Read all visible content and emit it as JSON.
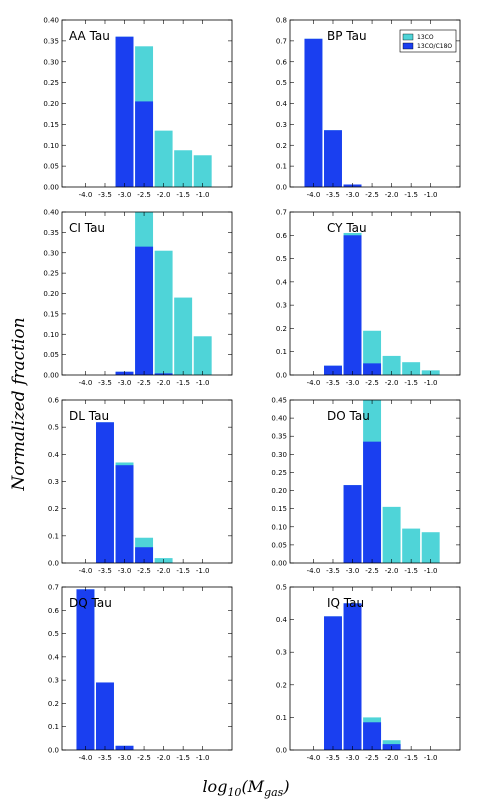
{
  "figure": {
    "ylabel": "Normalized fraction",
    "xlabel": "log10(Mgas)",
    "colors": {
      "cyan": "#4fd4d8",
      "blue": "#1a3ff0"
    },
    "legend": [
      "13CO",
      "13CO/C18O"
    ]
  },
  "chart_data": [
    {
      "type": "bar",
      "name": "AA Tau",
      "categories": [
        "-4.0",
        "-3.5",
        "-3.0",
        "-2.5",
        "-2.0",
        "-1.5",
        "-1.0"
      ],
      "series": [
        {
          "name": "13CO",
          "values": [
            0,
            0,
            0.36,
            0.337,
            0.135,
            0.088,
            0.076
          ]
        },
        {
          "name": "13CO/C18O",
          "values": [
            0,
            0,
            0.36,
            0.205,
            0,
            0,
            0
          ]
        }
      ],
      "ylim": [
        0,
        0.4
      ],
      "yticks": [
        "0.00",
        "0.05",
        "0.10",
        "0.15",
        "0.20",
        "0.25",
        "0.30",
        "0.35",
        "0.40"
      ],
      "ytick_values": [
        0,
        0.05,
        0.1,
        0.15,
        0.2,
        0.25,
        0.3,
        0.35,
        0.4
      ]
    },
    {
      "type": "bar",
      "name": "BP Tau",
      "categories": [
        "-4.0",
        "-3.5",
        "-3.0",
        "-2.5",
        "-2.0",
        "-1.5",
        "-1.0"
      ],
      "series": [
        {
          "name": "13CO",
          "values": [
            0.71,
            0.272,
            0.012,
            0,
            0,
            0,
            0
          ]
        },
        {
          "name": "13CO/C18O",
          "values": [
            0.71,
            0.272,
            0.012,
            0,
            0,
            0,
            0
          ]
        }
      ],
      "ylim": [
        0,
        0.8
      ],
      "yticks": [
        "0.0",
        "0.1",
        "0.2",
        "0.3",
        "0.4",
        "0.5",
        "0.6",
        "0.7",
        "0.8"
      ],
      "ytick_values": [
        0,
        0.1,
        0.2,
        0.3,
        0.4,
        0.5,
        0.6,
        0.7,
        0.8
      ],
      "legend": true
    },
    {
      "type": "bar",
      "name": "CI Tau",
      "categories": [
        "-4.0",
        "-3.5",
        "-3.0",
        "-2.5",
        "-2.0",
        "-1.5",
        "-1.0"
      ],
      "series": [
        {
          "name": "13CO",
          "values": [
            0,
            0,
            0.008,
            0.4,
            0.305,
            0.19,
            0.095
          ]
        },
        {
          "name": "13CO/C18O",
          "values": [
            0,
            0,
            0.008,
            0.315,
            0.004,
            0,
            0
          ]
        }
      ],
      "ylim": [
        0,
        0.4
      ],
      "yticks": [
        "0.00",
        "0.05",
        "0.10",
        "0.15",
        "0.20",
        "0.25",
        "0.30",
        "0.35",
        "0.40"
      ],
      "ytick_values": [
        0,
        0.05,
        0.1,
        0.15,
        0.2,
        0.25,
        0.3,
        0.35,
        0.4
      ]
    },
    {
      "type": "bar",
      "name": "CY Tau",
      "categories": [
        "-4.0",
        "-3.5",
        "-3.0",
        "-2.5",
        "-2.0",
        "-1.5",
        "-1.0"
      ],
      "series": [
        {
          "name": "13CO",
          "values": [
            0,
            0.04,
            0.61,
            0.19,
            0.082,
            0.055,
            0.02
          ]
        },
        {
          "name": "13CO/C18O",
          "values": [
            0,
            0.04,
            0.6,
            0.05,
            0,
            0,
            0
          ]
        }
      ],
      "ylim": [
        0,
        0.7
      ],
      "yticks": [
        "0.0",
        "0.1",
        "0.2",
        "0.3",
        "0.4",
        "0.5",
        "0.6",
        "0.7"
      ],
      "ytick_values": [
        0,
        0.1,
        0.2,
        0.3,
        0.4,
        0.5,
        0.6,
        0.7
      ]
    },
    {
      "type": "bar",
      "name": "DL Tau",
      "categories": [
        "-4.0",
        "-3.5",
        "-3.0",
        "-2.5",
        "-2.0",
        "-1.5",
        "-1.0"
      ],
      "series": [
        {
          "name": "13CO",
          "values": [
            0,
            0.518,
            0.37,
            0.093,
            0.018,
            0,
            0
          ]
        },
        {
          "name": "13CO/C18O",
          "values": [
            0,
            0.518,
            0.36,
            0.058,
            0,
            0,
            0
          ]
        }
      ],
      "ylim": [
        0,
        0.6
      ],
      "yticks": [
        "0.0",
        "0.1",
        "0.2",
        "0.3",
        "0.4",
        "0.5",
        "0.6"
      ],
      "ytick_values": [
        0,
        0.1,
        0.2,
        0.3,
        0.4,
        0.5,
        0.6
      ]
    },
    {
      "type": "bar",
      "name": "DO Tau",
      "categories": [
        "-4.0",
        "-3.5",
        "-3.0",
        "-2.5",
        "-2.0",
        "-1.5",
        "-1.0"
      ],
      "series": [
        {
          "name": "13CO",
          "values": [
            0,
            0,
            0.215,
            0.45,
            0.155,
            0.095,
            0.085
          ]
        },
        {
          "name": "13CO/C18O",
          "values": [
            0,
            0,
            0.215,
            0.335,
            0,
            0,
            0
          ]
        }
      ],
      "ylim": [
        0,
        0.45
      ],
      "yticks": [
        "0.00",
        "0.05",
        "0.10",
        "0.15",
        "0.20",
        "0.25",
        "0.30",
        "0.35",
        "0.40",
        "0.45"
      ],
      "ytick_values": [
        0,
        0.05,
        0.1,
        0.15,
        0.2,
        0.25,
        0.3,
        0.35,
        0.4,
        0.45
      ]
    },
    {
      "type": "bar",
      "name": "DQ Tau",
      "categories": [
        "-4.0",
        "-3.5",
        "-3.0",
        "-2.5",
        "-2.0",
        "-1.5",
        "-1.0"
      ],
      "series": [
        {
          "name": "13CO",
          "values": [
            0.69,
            0.29,
            0.018,
            0,
            0,
            0,
            0
          ]
        },
        {
          "name": "13CO/C18O",
          "values": [
            0.69,
            0.29,
            0.018,
            0,
            0,
            0,
            0
          ]
        }
      ],
      "ylim": [
        0,
        0.7
      ],
      "yticks": [
        "0.0",
        "0.1",
        "0.2",
        "0.3",
        "0.4",
        "0.5",
        "0.6",
        "0.7"
      ],
      "ytick_values": [
        0,
        0.1,
        0.2,
        0.3,
        0.4,
        0.5,
        0.6,
        0.7
      ]
    },
    {
      "type": "bar",
      "name": "IQ Tau",
      "categories": [
        "-4.0",
        "-3.5",
        "-3.0",
        "-2.5",
        "-2.0",
        "-1.5",
        "-1.0"
      ],
      "series": [
        {
          "name": "13CO",
          "values": [
            0,
            0.41,
            0.45,
            0.1,
            0.03,
            0,
            0
          ]
        },
        {
          "name": "13CO/C18O",
          "values": [
            0,
            0.41,
            0.45,
            0.085,
            0.018,
            0,
            0
          ]
        }
      ],
      "ylim": [
        0,
        0.5
      ],
      "yticks": [
        "0.0",
        "0.1",
        "0.2",
        "0.3",
        "0.4",
        "0.5"
      ],
      "ytick_values": [
        0,
        0.1,
        0.2,
        0.3,
        0.4,
        0.5
      ]
    }
  ]
}
